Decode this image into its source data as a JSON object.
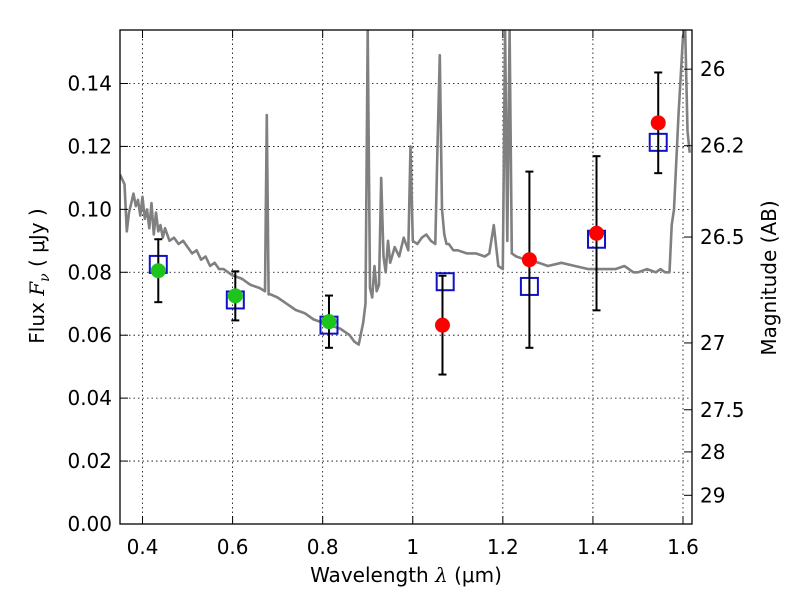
{
  "chart_data": {
    "type": "scatter",
    "title": "",
    "xlabel": {
      "prefix": "Wavelength  ",
      "symbol": "λ",
      "unit": " (μm)"
    },
    "ylabel": {
      "prefix": "Flux  ",
      "symbol": "F",
      "subscript": "ν",
      "unit": "  ( μJy )"
    },
    "y2label": "Magnitude (AB)",
    "xlim": [
      0.35,
      1.62
    ],
    "ylim": [
      0.0,
      0.157
    ],
    "grid": true,
    "grid_style": "dotted",
    "xticks": [
      {
        "value": 0.4,
        "label": "0.4"
      },
      {
        "value": 0.6,
        "label": "0.6"
      },
      {
        "value": 0.8,
        "label": "0.8"
      },
      {
        "value": 1.0,
        "label": "1"
      },
      {
        "value": 1.2,
        "label": "1.2"
      },
      {
        "value": 1.4,
        "label": "1.4"
      },
      {
        "value": 1.6,
        "label": "1.6"
      }
    ],
    "yticks": [
      {
        "value": 0.0,
        "label": "0.00"
      },
      {
        "value": 0.02,
        "label": "0.02"
      },
      {
        "value": 0.04,
        "label": "0.04"
      },
      {
        "value": 0.06,
        "label": "0.06"
      },
      {
        "value": 0.08,
        "label": "0.08"
      },
      {
        "value": 0.1,
        "label": "0.10"
      },
      {
        "value": 0.12,
        "label": "0.12"
      },
      {
        "value": 0.14,
        "label": "0.14"
      }
    ],
    "y2ticks": [
      {
        "value": 26.0,
        "label": "26"
      },
      {
        "value": 26.2,
        "label": "26.2"
      },
      {
        "value": 26.5,
        "label": "26.5"
      },
      {
        "value": 27.0,
        "label": "27"
      },
      {
        "value": 27.5,
        "label": "27.5"
      },
      {
        "value": 28.0,
        "label": "28"
      },
      {
        "value": 29.0,
        "label": "29"
      }
    ],
    "colors": {
      "template": "#808080",
      "hst_points": "#1cc41c",
      "ir_points": "#ff0000",
      "model_boxes": "#1010c8",
      "errorbars": "#000000"
    },
    "template_spectrum": {
      "x": [
        0.35,
        0.36,
        0.365,
        0.37,
        0.375,
        0.38,
        0.385,
        0.39,
        0.395,
        0.4,
        0.405,
        0.41,
        0.415,
        0.42,
        0.425,
        0.43,
        0.435,
        0.44,
        0.445,
        0.45,
        0.46,
        0.47,
        0.48,
        0.49,
        0.5,
        0.51,
        0.52,
        0.53,
        0.54,
        0.55,
        0.56,
        0.57,
        0.58,
        0.59,
        0.6,
        0.62,
        0.64,
        0.66,
        0.672,
        0.676,
        0.68,
        0.684,
        0.7,
        0.72,
        0.74,
        0.76,
        0.78,
        0.8,
        0.82,
        0.84,
        0.85,
        0.86,
        0.87,
        0.88,
        0.89,
        0.895,
        0.9,
        0.905,
        0.91,
        0.915,
        0.92,
        0.925,
        0.93,
        0.935,
        0.94,
        0.945,
        0.95,
        0.96,
        0.97,
        0.98,
        0.99,
        0.995,
        1.0,
        1.01,
        1.02,
        1.03,
        1.04,
        1.05,
        1.055,
        1.06,
        1.065,
        1.07,
        1.075,
        1.08,
        1.09,
        1.1,
        1.12,
        1.14,
        1.16,
        1.17,
        1.18,
        1.19,
        1.2,
        1.205,
        1.21,
        1.215,
        1.22,
        1.23,
        1.25,
        1.28,
        1.3,
        1.33,
        1.36,
        1.39,
        1.42,
        1.45,
        1.47,
        1.49,
        1.5,
        1.52,
        1.54,
        1.55,
        1.56,
        1.57,
        1.575,
        1.58,
        1.59,
        1.6,
        1.605,
        1.61,
        1.615
      ],
      "y": [
        0.111,
        0.108,
        0.093,
        0.099,
        0.102,
        0.105,
        0.101,
        0.103,
        0.098,
        0.104,
        0.097,
        0.1,
        0.094,
        0.102,
        0.092,
        0.099,
        0.093,
        0.095,
        0.091,
        0.094,
        0.09,
        0.091,
        0.089,
        0.09,
        0.088,
        0.086,
        0.087,
        0.084,
        0.085,
        0.082,
        0.083,
        0.081,
        0.081,
        0.08,
        0.079,
        0.078,
        0.076,
        0.075,
        0.074,
        0.13,
        0.073,
        0.073,
        0.072,
        0.07,
        0.068,
        0.067,
        0.065,
        0.064,
        0.063,
        0.062,
        0.061,
        0.06,
        0.058,
        0.057,
        0.064,
        0.07,
        0.157,
        0.075,
        0.072,
        0.082,
        0.074,
        0.076,
        0.11,
        0.085,
        0.08,
        0.09,
        0.083,
        0.088,
        0.085,
        0.091,
        0.087,
        0.12,
        0.09,
        0.089,
        0.091,
        0.092,
        0.09,
        0.089,
        0.12,
        0.149,
        0.1,
        0.092,
        0.089,
        0.089,
        0.087,
        0.087,
        0.086,
        0.086,
        0.085,
        0.086,
        0.095,
        0.082,
        0.081,
        0.157,
        0.09,
        0.157,
        0.086,
        0.085,
        0.084,
        0.083,
        0.082,
        0.083,
        0.082,
        0.081,
        0.081,
        0.081,
        0.082,
        0.08,
        0.08,
        0.081,
        0.08,
        0.081,
        0.08,
        0.08,
        0.095,
        0.1,
        0.13,
        0.155,
        0.157,
        0.125,
        0.118
      ]
    },
    "series": [
      {
        "marker": "circle",
        "color": "#1cc41c",
        "points": [
          {
            "x": 0.435,
            "y": 0.0805,
            "err": 0.01
          },
          {
            "x": 0.606,
            "y": 0.0725,
            "err": 0.0078
          },
          {
            "x": 0.814,
            "y": 0.0643,
            "err": 0.0083
          }
        ]
      },
      {
        "marker": "circle",
        "color": "#ff0000",
        "points": [
          {
            "x": 1.066,
            "y": 0.0632,
            "err": 0.0157
          },
          {
            "x": 1.259,
            "y": 0.084,
            "err": 0.028
          },
          {
            "x": 1.408,
            "y": 0.0924,
            "err": 0.0245
          },
          {
            "x": 1.545,
            "y": 0.1275,
            "err": 0.016
          }
        ]
      },
      {
        "marker": "open-square",
        "color": "#1010c8",
        "points": [
          {
            "x": 0.435,
            "y": 0.0825
          },
          {
            "x": 0.606,
            "y": 0.0712
          },
          {
            "x": 0.814,
            "y": 0.0632
          },
          {
            "x": 1.072,
            "y": 0.077
          },
          {
            "x": 1.259,
            "y": 0.0755
          },
          {
            "x": 1.408,
            "y": 0.0905
          },
          {
            "x": 1.545,
            "y": 0.1213
          }
        ]
      }
    ]
  }
}
